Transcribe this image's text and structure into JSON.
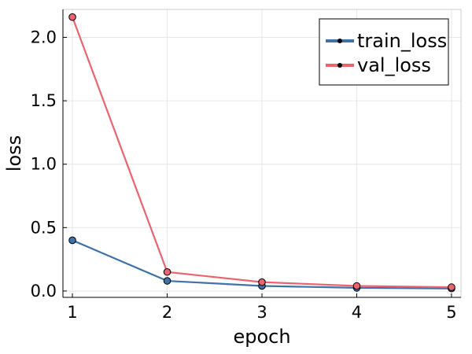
{
  "chart_data": {
    "type": "line",
    "title": "",
    "xlabel": "epoch",
    "ylabel": "loss",
    "x": [
      1,
      2,
      3,
      4,
      5
    ],
    "xticks": [
      "1",
      "2",
      "3",
      "4",
      "5"
    ],
    "yticks": [
      "0.0",
      "0.5",
      "1.0",
      "1.5",
      "2.0"
    ],
    "ytick_values": [
      0.0,
      0.5,
      1.0,
      1.5,
      2.0
    ],
    "xlim": [
      0.9,
      5.1
    ],
    "ylim": [
      -0.05,
      2.22
    ],
    "grid": true,
    "legend_position": "top-right",
    "series": [
      {
        "name": "train_loss",
        "color": "#3f72a8",
        "values": [
          0.4,
          0.08,
          0.04,
          0.025,
          0.02
        ]
      },
      {
        "name": "val_loss",
        "color": "#e8646f",
        "values": [
          2.16,
          0.15,
          0.07,
          0.04,
          0.03
        ]
      }
    ]
  }
}
